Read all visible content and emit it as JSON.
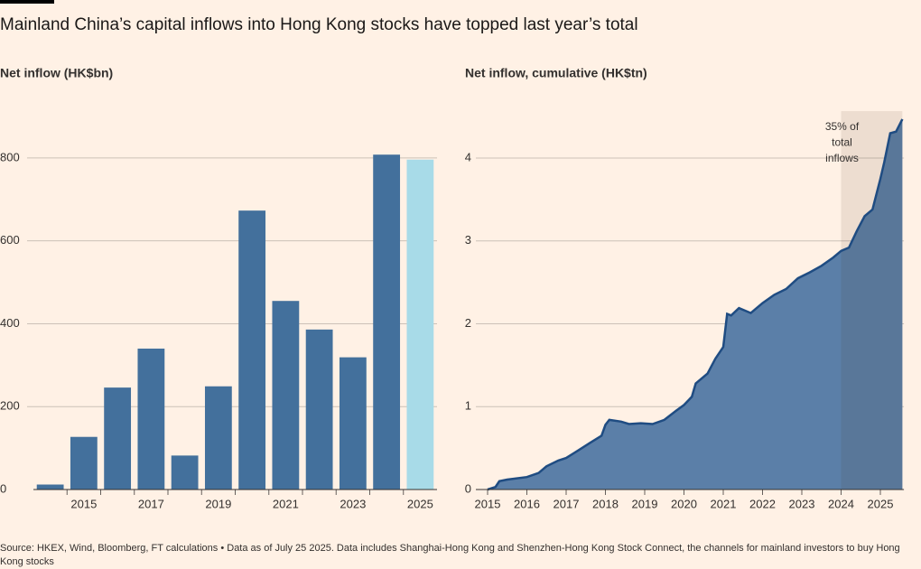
{
  "title": "Mainland China’s capital inflows into Hong Kong stocks have topped last year’s total",
  "source": "Source: HKEX, Wind, Bloomberg, FT calculations • Data as of July 25 2025. Data includes Shanghai-Hong Kong and Shenzhen-Hong Kong Stock Connect, the channels for mainland investors to buy Hong Kong stocks",
  "chart_data": [
    {
      "type": "bar",
      "y_label": "Net inflow (HK$bn)",
      "categories": [
        null,
        "2015",
        null,
        "2017",
        null,
        "2019",
        null,
        "2021",
        null,
        "2023",
        null,
        "2025"
      ],
      "values": [
        12,
        127,
        246,
        340,
        82,
        249,
        673,
        455,
        386,
        319,
        808,
        796
      ],
      "colors": [
        "#43709c",
        "#43709c",
        "#43709c",
        "#43709c",
        "#43709c",
        "#43709c",
        "#43709c",
        "#43709c",
        "#43709c",
        "#43709c",
        "#43709c",
        "#a8dbe8"
      ],
      "ylim": [
        0,
        900
      ],
      "yticks": [
        0,
        200,
        400,
        600,
        800
      ],
      "grid": true
    },
    {
      "type": "area",
      "y_label": "Net inflow, cumulative (HK$tn)",
      "x": [
        2015.0,
        2015.2,
        2015.3,
        2015.5,
        2016.0,
        2016.3,
        2016.5,
        2016.8,
        2017.0,
        2017.3,
        2017.6,
        2017.9,
        2018.0,
        2018.1,
        2018.4,
        2018.6,
        2018.9,
        2019.2,
        2019.5,
        2019.8,
        2020.0,
        2020.2,
        2020.3,
        2020.6,
        2020.8,
        2021.0,
        2021.1,
        2021.2,
        2021.4,
        2021.7,
        2022.0,
        2022.3,
        2022.6,
        2022.9,
        2023.2,
        2023.5,
        2023.8,
        2024.0,
        2024.2,
        2024.4,
        2024.6,
        2024.8,
        2025.0,
        2025.1,
        2025.25,
        2025.4,
        2025.56
      ],
      "values": [
        0.0,
        0.03,
        0.1,
        0.12,
        0.15,
        0.2,
        0.28,
        0.35,
        0.38,
        0.47,
        0.56,
        0.65,
        0.78,
        0.84,
        0.82,
        0.79,
        0.8,
        0.79,
        0.84,
        0.95,
        1.02,
        1.12,
        1.28,
        1.4,
        1.58,
        1.72,
        2.12,
        2.1,
        2.19,
        2.13,
        2.25,
        2.35,
        2.42,
        2.55,
        2.62,
        2.7,
        2.8,
        2.88,
        2.92,
        3.12,
        3.3,
        3.38,
        3.75,
        3.95,
        4.3,
        4.32,
        4.47
      ],
      "color": "#5b7fa8",
      "line_color": "#1f4c82",
      "xlim": [
        2014.9,
        2025.6
      ],
      "xticks": [
        2015,
        2016,
        2017,
        2018,
        2019,
        2020,
        2021,
        2022,
        2023,
        2024,
        2025
      ],
      "ylim": [
        0,
        4.6
      ],
      "yticks": [
        0,
        1,
        2,
        3,
        4
      ],
      "grid": true,
      "highlight_from": 2024,
      "annotation": [
        "35% of",
        "total",
        "inflows"
      ]
    }
  ]
}
